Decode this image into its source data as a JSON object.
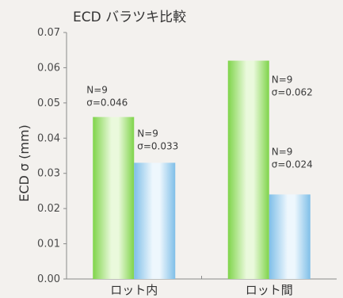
{
  "chart_data": {
    "type": "bar",
    "title": "ECD バラツキ比較",
    "ylabel": "ECD σ (mm)",
    "xlabel": "",
    "categories": [
      "ロット内",
      "ロット間"
    ],
    "series": [
      {
        "values": [
          0.046,
          0.062
        ],
        "gradient": [
          "#7fd44a",
          "#eaf9dc"
        ]
      },
      {
        "values": [
          0.033,
          0.024
        ],
        "gradient": [
          "#7fbfe8",
          "#eef7fd"
        ]
      }
    ],
    "ylim": [
      0,
      0.07
    ],
    "yticks": [
      "0.00",
      "0.01",
      "0.02",
      "0.03",
      "0.04",
      "0.05",
      "0.06",
      "0.07"
    ],
    "annotations": [
      {
        "category": 0,
        "series": 0,
        "n": "N=9",
        "sigma": "σ=0.046"
      },
      {
        "category": 0,
        "series": 1,
        "n": "N=9",
        "sigma": "σ=0.033"
      },
      {
        "category": 1,
        "series": 0,
        "n": "N=9",
        "sigma": "σ=0.062"
      },
      {
        "category": 1,
        "series": 1,
        "n": "N=9",
        "sigma": "σ=0.024"
      }
    ],
    "grid": false,
    "legend": "none"
  }
}
